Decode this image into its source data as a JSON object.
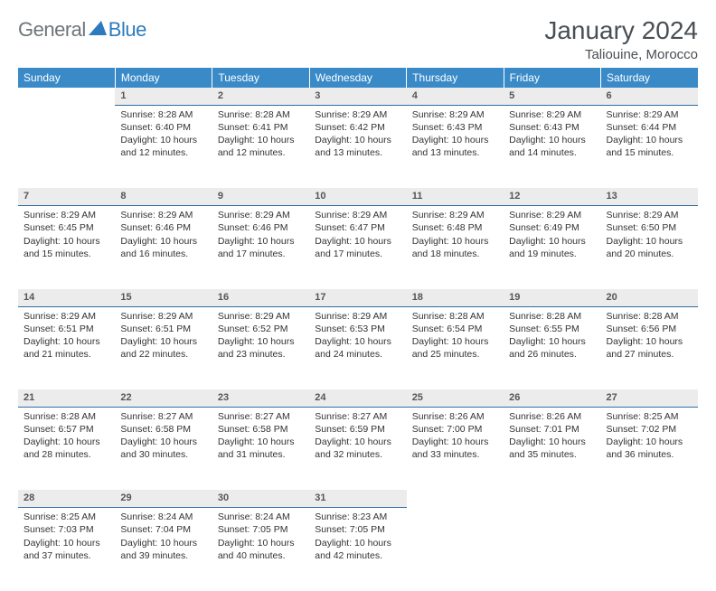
{
  "logo": {
    "general": "General",
    "blue": "Blue"
  },
  "title": "January 2024",
  "location": "Taliouine, Morocco",
  "colors": {
    "header_bg": "#3a8ac8",
    "header_text": "#ffffff",
    "daynum_bg": "#ececec",
    "daynum_border": "#2e6ea5",
    "body_text": "#333333",
    "logo_general": "#6f7579",
    "logo_blue": "#2d7bbd"
  },
  "weekdays": [
    "Sunday",
    "Monday",
    "Tuesday",
    "Wednesday",
    "Thursday",
    "Friday",
    "Saturday"
  ],
  "start_offset": 1,
  "days": [
    {
      "n": 1,
      "sr": "8:28 AM",
      "ss": "6:40 PM",
      "dl": "10 hours and 12 minutes."
    },
    {
      "n": 2,
      "sr": "8:28 AM",
      "ss": "6:41 PM",
      "dl": "10 hours and 12 minutes."
    },
    {
      "n": 3,
      "sr": "8:29 AM",
      "ss": "6:42 PM",
      "dl": "10 hours and 13 minutes."
    },
    {
      "n": 4,
      "sr": "8:29 AM",
      "ss": "6:43 PM",
      "dl": "10 hours and 13 minutes."
    },
    {
      "n": 5,
      "sr": "8:29 AM",
      "ss": "6:43 PM",
      "dl": "10 hours and 14 minutes."
    },
    {
      "n": 6,
      "sr": "8:29 AM",
      "ss": "6:44 PM",
      "dl": "10 hours and 15 minutes."
    },
    {
      "n": 7,
      "sr": "8:29 AM",
      "ss": "6:45 PM",
      "dl": "10 hours and 15 minutes."
    },
    {
      "n": 8,
      "sr": "8:29 AM",
      "ss": "6:46 PM",
      "dl": "10 hours and 16 minutes."
    },
    {
      "n": 9,
      "sr": "8:29 AM",
      "ss": "6:46 PM",
      "dl": "10 hours and 17 minutes."
    },
    {
      "n": 10,
      "sr": "8:29 AM",
      "ss": "6:47 PM",
      "dl": "10 hours and 17 minutes."
    },
    {
      "n": 11,
      "sr": "8:29 AM",
      "ss": "6:48 PM",
      "dl": "10 hours and 18 minutes."
    },
    {
      "n": 12,
      "sr": "8:29 AM",
      "ss": "6:49 PM",
      "dl": "10 hours and 19 minutes."
    },
    {
      "n": 13,
      "sr": "8:29 AM",
      "ss": "6:50 PM",
      "dl": "10 hours and 20 minutes."
    },
    {
      "n": 14,
      "sr": "8:29 AM",
      "ss": "6:51 PM",
      "dl": "10 hours and 21 minutes."
    },
    {
      "n": 15,
      "sr": "8:29 AM",
      "ss": "6:51 PM",
      "dl": "10 hours and 22 minutes."
    },
    {
      "n": 16,
      "sr": "8:29 AM",
      "ss": "6:52 PM",
      "dl": "10 hours and 23 minutes."
    },
    {
      "n": 17,
      "sr": "8:29 AM",
      "ss": "6:53 PM",
      "dl": "10 hours and 24 minutes."
    },
    {
      "n": 18,
      "sr": "8:28 AM",
      "ss": "6:54 PM",
      "dl": "10 hours and 25 minutes."
    },
    {
      "n": 19,
      "sr": "8:28 AM",
      "ss": "6:55 PM",
      "dl": "10 hours and 26 minutes."
    },
    {
      "n": 20,
      "sr": "8:28 AM",
      "ss": "6:56 PM",
      "dl": "10 hours and 27 minutes."
    },
    {
      "n": 21,
      "sr": "8:28 AM",
      "ss": "6:57 PM",
      "dl": "10 hours and 28 minutes."
    },
    {
      "n": 22,
      "sr": "8:27 AM",
      "ss": "6:58 PM",
      "dl": "10 hours and 30 minutes."
    },
    {
      "n": 23,
      "sr": "8:27 AM",
      "ss": "6:58 PM",
      "dl": "10 hours and 31 minutes."
    },
    {
      "n": 24,
      "sr": "8:27 AM",
      "ss": "6:59 PM",
      "dl": "10 hours and 32 minutes."
    },
    {
      "n": 25,
      "sr": "8:26 AM",
      "ss": "7:00 PM",
      "dl": "10 hours and 33 minutes."
    },
    {
      "n": 26,
      "sr": "8:26 AM",
      "ss": "7:01 PM",
      "dl": "10 hours and 35 minutes."
    },
    {
      "n": 27,
      "sr": "8:25 AM",
      "ss": "7:02 PM",
      "dl": "10 hours and 36 minutes."
    },
    {
      "n": 28,
      "sr": "8:25 AM",
      "ss": "7:03 PM",
      "dl": "10 hours and 37 minutes."
    },
    {
      "n": 29,
      "sr": "8:24 AM",
      "ss": "7:04 PM",
      "dl": "10 hours and 39 minutes."
    },
    {
      "n": 30,
      "sr": "8:24 AM",
      "ss": "7:05 PM",
      "dl": "10 hours and 40 minutes."
    },
    {
      "n": 31,
      "sr": "8:23 AM",
      "ss": "7:05 PM",
      "dl": "10 hours and 42 minutes."
    }
  ],
  "labels": {
    "sunrise": "Sunrise:",
    "sunset": "Sunset:",
    "daylight": "Daylight:"
  }
}
